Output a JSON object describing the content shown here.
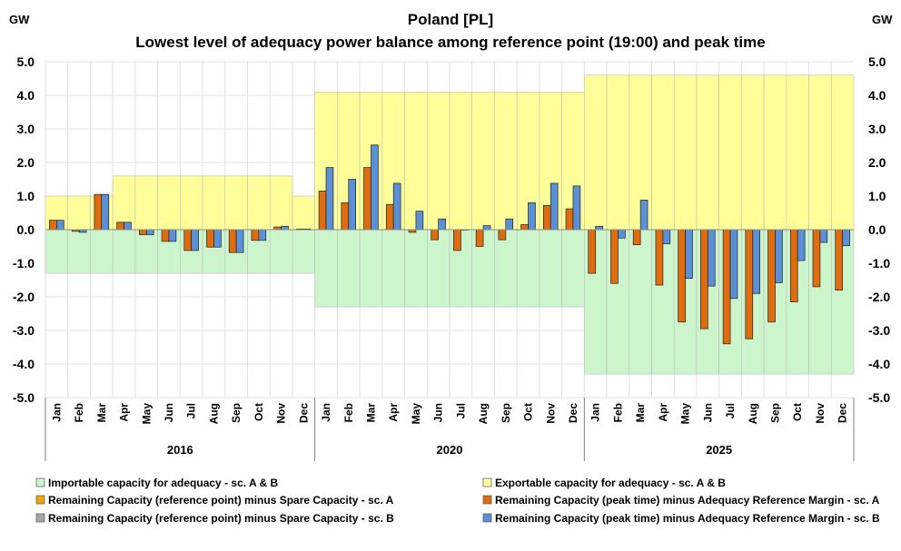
{
  "chart_data": {
    "type": "bar",
    "title": "Poland [PL]",
    "subtitle": "Lowest level of adequacy power balance among reference point (19:00) and peak time",
    "ylabel_left": "GW",
    "ylabel_right": "GW",
    "ylim": [
      -5.0,
      5.0
    ],
    "yticks": [
      "5.0",
      "4.0",
      "3.0",
      "2.0",
      "1.0",
      "0.0",
      "-1.0",
      "-2.0",
      "-3.0",
      "-4.0",
      "-5.0"
    ],
    "groups": [
      {
        "label": "2016",
        "months": [
          "Jan",
          "Feb",
          "Mar",
          "Apr",
          "May",
          "Jun",
          "Jul",
          "Aug",
          "Sep",
          "Oct",
          "Nov",
          "Dec"
        ]
      },
      {
        "label": "2020",
        "months": [
          "Jan",
          "Feb",
          "Mar",
          "Apr",
          "May",
          "Jun",
          "Jul",
          "Aug",
          "Sep",
          "Oct",
          "Nov",
          "Dec"
        ]
      },
      {
        "label": "2025",
        "months": [
          "Jan",
          "Feb",
          "Mar",
          "Apr",
          "May",
          "Jun",
          "Jul",
          "Aug",
          "Sep",
          "Oct",
          "Nov",
          "Dec"
        ]
      }
    ],
    "colors": {
      "importable": "#ccf5cc",
      "exportable": "#ffff99",
      "ref_point_a": "#f0a30a",
      "peak_a": "#e06c10",
      "ref_point_b": "#a6a6a6",
      "peak_b": "#5b8fd6"
    },
    "series": [
      {
        "name": "Importable capacity for adequacy - sc. A & B",
        "kind": "area",
        "color_key": "importable",
        "values": [
          -1.3,
          -1.3,
          -1.3,
          -1.3,
          -1.3,
          -1.3,
          -1.3,
          -1.3,
          -1.3,
          -1.3,
          -1.3,
          -1.3,
          -2.3,
          -2.3,
          -2.3,
          -2.3,
          -2.3,
          -2.3,
          -2.3,
          -2.3,
          -2.3,
          -2.3,
          -2.3,
          -2.3,
          -4.3,
          -4.3,
          -4.3,
          -4.3,
          -4.3,
          -4.3,
          -4.3,
          -4.3,
          -4.3,
          -4.3,
          -4.3,
          -4.3
        ]
      },
      {
        "name": "Exportable capacity for adequacy - sc. A & B",
        "kind": "area",
        "color_key": "exportable",
        "values": [
          1.0,
          1.0,
          1.0,
          1.6,
          1.6,
          1.6,
          1.6,
          1.6,
          1.6,
          1.6,
          1.6,
          1.0,
          4.1,
          4.1,
          4.1,
          4.1,
          4.1,
          4.1,
          4.1,
          4.1,
          4.1,
          4.1,
          4.1,
          4.1,
          4.6,
          4.6,
          4.6,
          4.6,
          4.6,
          4.6,
          4.6,
          4.6,
          4.6,
          4.6,
          4.6,
          4.6
        ]
      },
      {
        "name": "Remaining Capacity (reference point) minus Spare Capacity - sc. A",
        "kind": "legend",
        "color_key": "ref_point_a",
        "values": []
      },
      {
        "name": "Remaining Capacity (peak time) minus Adequacy Reference Margin - sc. A",
        "kind": "bar",
        "color_key": "peak_a",
        "values": [
          0.28,
          -0.05,
          1.05,
          0.22,
          -0.15,
          -0.35,
          -0.62,
          -0.52,
          -0.68,
          -0.32,
          0.08,
          0.02,
          1.15,
          0.8,
          1.85,
          0.75,
          -0.08,
          -0.3,
          -0.62,
          -0.5,
          -0.3,
          0.15,
          0.72,
          0.62,
          -1.3,
          -1.6,
          -0.45,
          -1.65,
          -2.75,
          -2.95,
          -3.4,
          -3.25,
          -2.75,
          -2.15,
          -1.7,
          -1.8
        ]
      },
      {
        "name": "Remaining Capacity (reference point) minus Spare Capacity - sc. B",
        "kind": "legend",
        "color_key": "ref_point_b",
        "values": []
      },
      {
        "name": "Remaining Capacity (peak time) minus Adequacy Reference Margin - sc. B",
        "kind": "bar",
        "color_key": "peak_b",
        "values": [
          0.28,
          -0.08,
          1.05,
          0.22,
          -0.15,
          -0.35,
          -0.62,
          -0.52,
          -0.68,
          -0.32,
          0.1,
          0.02,
          1.85,
          1.5,
          2.52,
          1.38,
          0.55,
          0.32,
          0.0,
          0.12,
          0.32,
          0.8,
          1.38,
          1.3,
          0.1,
          -0.25,
          0.88,
          -0.42,
          -1.45,
          -1.68,
          -2.05,
          -1.9,
          -1.58,
          -0.92,
          -0.38,
          -0.48
        ]
      }
    ],
    "legend": [
      "Importable capacity for adequacy - sc. A & B",
      "Exportable capacity for adequacy - sc. A & B",
      "Remaining Capacity (reference point) minus Spare Capacity - sc. A",
      "Remaining Capacity (peak time) minus Adequacy Reference Margin - sc. A",
      "Remaining Capacity (reference point) minus Spare Capacity - sc. B",
      "Remaining Capacity (peak time) minus Adequacy Reference Margin - sc. B"
    ],
    "legend_position": "bottom"
  }
}
